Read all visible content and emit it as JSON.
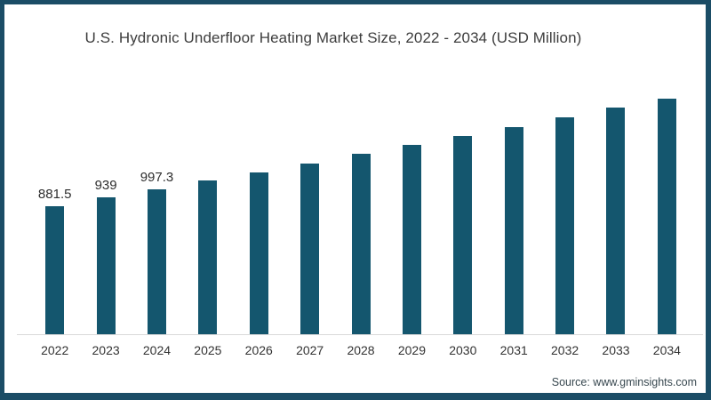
{
  "chart": {
    "title": "U.S.  Hydronic Underfloor Heating Market Size, 2022 - 2034 (USD Million)",
    "source": "Source: www.gminsights.com"
  },
  "chart_data": {
    "type": "bar",
    "title": "U.S. Hydronic Underfloor Heating Market Size, 2022 - 2034 (USD Million)",
    "categories": [
      "2022",
      "2023",
      "2024",
      "2025",
      "2026",
      "2027",
      "2028",
      "2029",
      "2030",
      "2031",
      "2032",
      "2033",
      "2034"
    ],
    "values": [
      881.5,
      939,
      997.3,
      1055,
      1115,
      1175,
      1240,
      1300,
      1365,
      1425,
      1490,
      1560,
      1620
    ],
    "data_labels": [
      "881.5",
      "939",
      "997.3",
      "",
      "",
      "",
      "",
      "",
      "",
      "",
      "",
      "",
      ""
    ],
    "xlabel": "",
    "ylabel": "",
    "ylim": [
      0,
      1700
    ],
    "grid": false,
    "legend": false,
    "y_axis_visible": false,
    "x_axis_line": true,
    "bar_color": "#14566e",
    "source": "Source: www.gminsights.com"
  }
}
